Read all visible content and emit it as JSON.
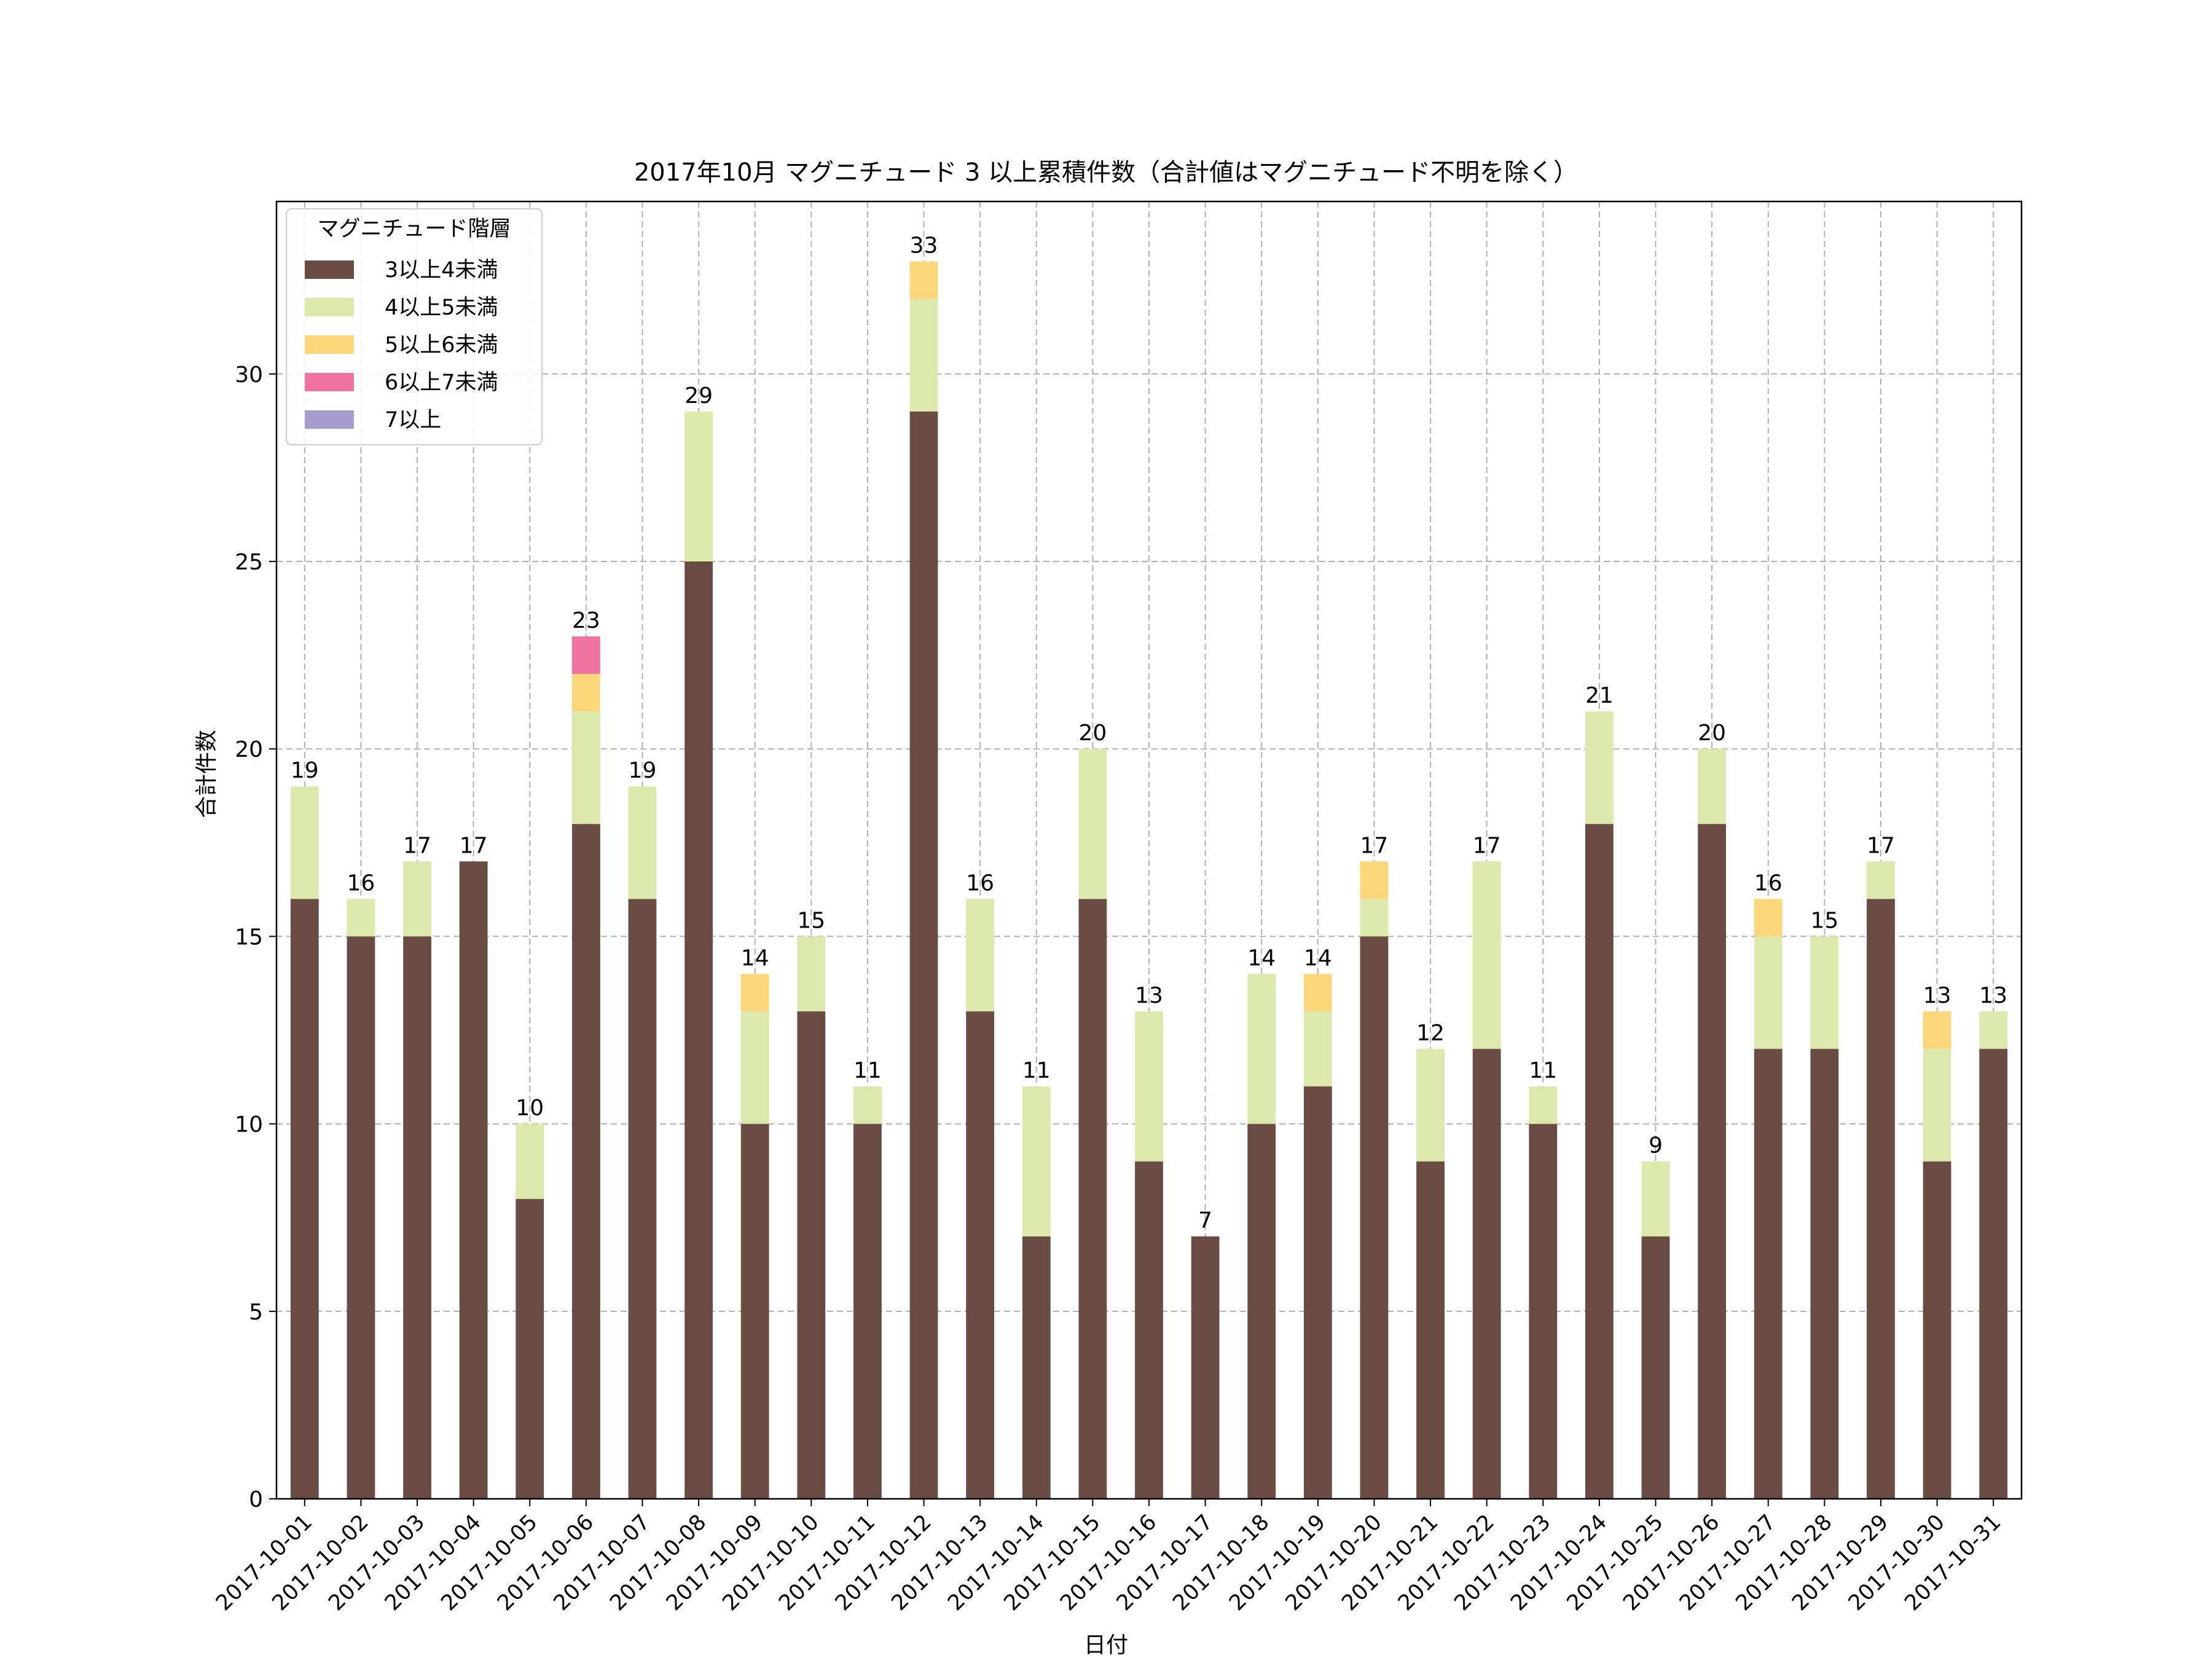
{
  "chart_data": {
    "type": "bar",
    "stacked": true,
    "title": "2017年10月 マグニチュード 3 以上累積件数（合計値はマグニチュード不明を除く）",
    "xlabel": "日付",
    "ylabel": "合計件数",
    "ylim": [
      0,
      34.6
    ],
    "yticks": [
      0,
      5,
      10,
      15,
      20,
      25,
      30
    ],
    "grid": true,
    "legend": {
      "title": "マグニチュード階層",
      "placement": "top-left"
    },
    "categories": [
      "2017-10-01",
      "2017-10-02",
      "2017-10-03",
      "2017-10-04",
      "2017-10-05",
      "2017-10-06",
      "2017-10-07",
      "2017-10-08",
      "2017-10-09",
      "2017-10-10",
      "2017-10-11",
      "2017-10-12",
      "2017-10-13",
      "2017-10-14",
      "2017-10-15",
      "2017-10-16",
      "2017-10-17",
      "2017-10-18",
      "2017-10-19",
      "2017-10-20",
      "2017-10-21",
      "2017-10-22",
      "2017-10-23",
      "2017-10-24",
      "2017-10-25",
      "2017-10-26",
      "2017-10-27",
      "2017-10-28",
      "2017-10-29",
      "2017-10-30",
      "2017-10-31"
    ],
    "series": [
      {
        "name": "3以上4未満",
        "color": "#6b4c45",
        "values": [
          16,
          15,
          15,
          17,
          8,
          18,
          16,
          25,
          10,
          13,
          10,
          29,
          13,
          7,
          16,
          9,
          7,
          10,
          11,
          15,
          9,
          12,
          10,
          18,
          7,
          18,
          12,
          12,
          16,
          9,
          12
        ]
      },
      {
        "name": "4以上5未満",
        "color": "#dde8ad",
        "values": [
          3,
          1,
          2,
          0,
          2,
          3,
          3,
          4,
          3,
          2,
          1,
          3,
          3,
          4,
          4,
          4,
          0,
          4,
          2,
          1,
          3,
          5,
          1,
          3,
          2,
          2,
          3,
          3,
          1,
          3,
          1
        ]
      },
      {
        "name": "5以上6未満",
        "color": "#fcd679",
        "values": [
          0,
          0,
          0,
          0,
          0,
          1,
          0,
          0,
          1,
          0,
          0,
          1,
          0,
          0,
          0,
          0,
          0,
          0,
          1,
          1,
          0,
          0,
          0,
          0,
          0,
          0,
          1,
          0,
          0,
          1,
          0
        ]
      },
      {
        "name": "6以上7未満",
        "color": "#ef72a0",
        "values": [
          0,
          0,
          0,
          0,
          0,
          1,
          0,
          0,
          0,
          0,
          0,
          0,
          0,
          0,
          0,
          0,
          0,
          0,
          0,
          0,
          0,
          0,
          0,
          0,
          0,
          0,
          0,
          0,
          0,
          0,
          0
        ]
      },
      {
        "name": "7以上",
        "color": "#a59ccc",
        "values": [
          0,
          0,
          0,
          0,
          0,
          0,
          0,
          0,
          0,
          0,
          0,
          0,
          0,
          0,
          0,
          0,
          0,
          0,
          0,
          0,
          0,
          0,
          0,
          0,
          0,
          0,
          0,
          0,
          0,
          0,
          0
        ]
      }
    ],
    "totals": [
      19,
      16,
      17,
      17,
      10,
      23,
      19,
      29,
      14,
      15,
      11,
      33,
      16,
      11,
      20,
      13,
      7,
      14,
      14,
      17,
      12,
      17,
      11,
      21,
      9,
      20,
      16,
      15,
      17,
      13,
      13
    ]
  }
}
